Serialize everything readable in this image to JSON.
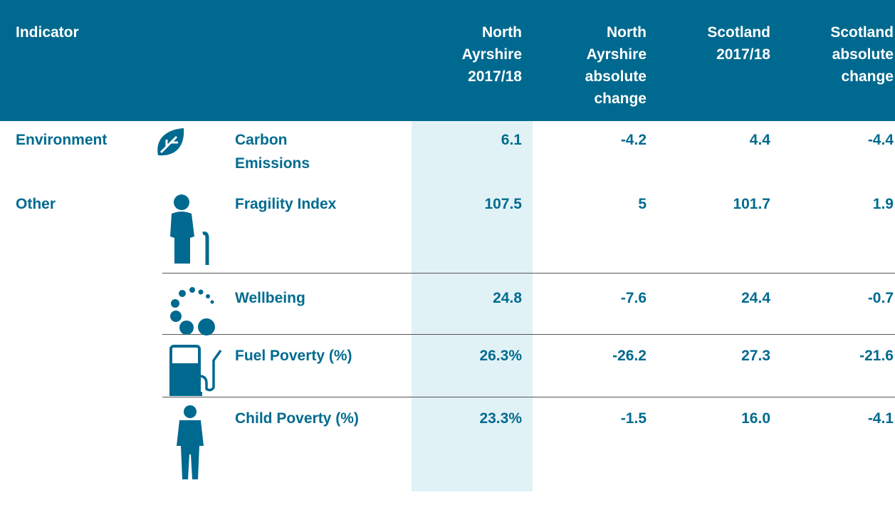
{
  "header": {
    "columns": [
      "Indicator",
      "North Ayrshire 2017/18",
      "North Ayrshire absolute change",
      "Scotland 2017/18",
      "Scotland absolute change"
    ]
  },
  "rows": [
    {
      "group": "Environment",
      "indicator": "Carbon Emissions",
      "values": [
        "6.1",
        "-4.2",
        "4.4",
        "-4.4"
      ]
    },
    {
      "group": "Other",
      "indicator": "Fragility Index",
      "values": [
        "107.5",
        "5",
        "101.7",
        "1.9"
      ]
    },
    {
      "indicator": "Wellbeing",
      "values": [
        "24.8",
        "-7.6",
        "24.4",
        "-0.7"
      ]
    },
    {
      "indicator": "Fuel Poverty (%)",
      "values": [
        "26.3%",
        "-26.2",
        "27.3",
        "-21.6"
      ]
    },
    {
      "indicator": "Child Poverty (%)",
      "values": [
        "23.3%",
        "-1.5",
        "16.0",
        "-4.1"
      ]
    }
  ]
}
